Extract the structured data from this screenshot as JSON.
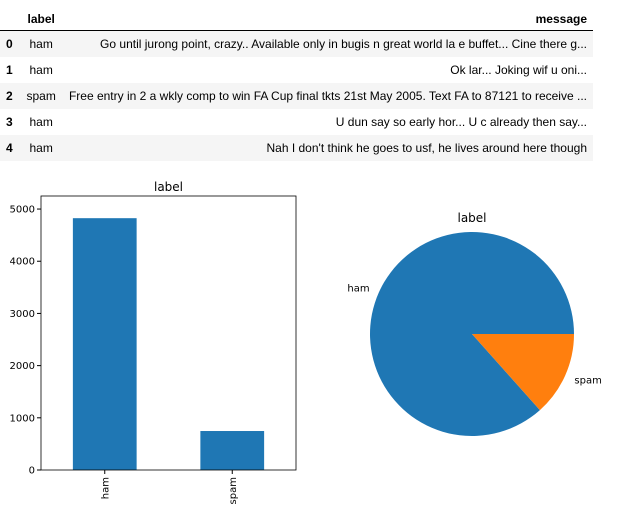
{
  "table": {
    "columns": [
      "label",
      "message"
    ],
    "rows": [
      {
        "index": "0",
        "label": "ham",
        "message": "Go until jurong point, crazy.. Available only in bugis n great world la e buffet... Cine there g..."
      },
      {
        "index": "1",
        "label": "ham",
        "message": "Ok lar... Joking wif u oni..."
      },
      {
        "index": "2",
        "label": "spam",
        "message": "Free entry in 2 a wkly comp to win FA Cup final tkts 21st May 2005. Text FA to 87121 to receive ..."
      },
      {
        "index": "3",
        "label": "ham",
        "message": "U dun say so early hor... U c already then say..."
      },
      {
        "index": "4",
        "label": "ham",
        "message": "Nah I don't think he goes to usf, he lives around here though"
      }
    ]
  },
  "chart_data": [
    {
      "type": "bar",
      "title": "label",
      "categories": [
        "ham",
        "spam"
      ],
      "values": [
        4825,
        747
      ],
      "ylim": [
        0,
        5000
      ],
      "yticks": [
        0,
        1000,
        2000,
        3000,
        4000,
        5000
      ],
      "color": "#1f77b4",
      "grid": false
    },
    {
      "type": "pie",
      "title": "label",
      "labels": [
        "ham",
        "spam"
      ],
      "values": [
        4825,
        747
      ],
      "colors": [
        "#1f77b4",
        "#ff7f0e"
      ]
    }
  ]
}
